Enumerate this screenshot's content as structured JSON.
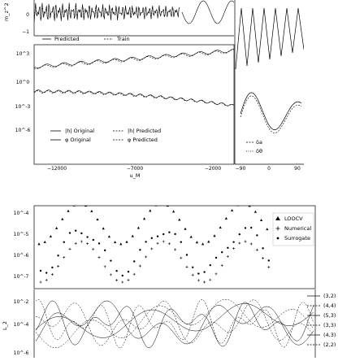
{
  "chart_data": [
    {
      "type": "line",
      "panel": "top-left",
      "ylabel": "m_z^2",
      "yticks": [
        "0",
        "−1"
      ],
      "legend": {
        "placement": "bottom-left",
        "entries": [
          "Predicted",
          "Train"
        ]
      },
      "series": [
        {
          "name": "Predicted",
          "style": "solid"
        },
        {
          "name": "Train",
          "style": "dashed"
        }
      ]
    },
    {
      "type": "line",
      "panel": "middle-left",
      "xlabel": "u_M",
      "yscale": "log",
      "yticks": [
        "10^3",
        "10^0",
        "10^-3",
        "10^-6"
      ],
      "xticks": [
        "−12000",
        "−7000",
        "−2000"
      ],
      "legend": {
        "placement": "bottom-left",
        "entries": [
          "|h| Original",
          "|h| Predicted",
          "φ Original",
          "φ Predicted"
        ]
      },
      "series": [
        {
          "name": "|h| Original",
          "style": "solid"
        },
        {
          "name": "|h| Predicted",
          "style": "dashed"
        },
        {
          "name": "φ Original",
          "style": "solid"
        },
        {
          "name": "φ Predicted",
          "style": "dashed"
        }
      ]
    },
    {
      "type": "line",
      "panel": "middle-right",
      "xticks": [
        "−90",
        "0",
        "90"
      ],
      "legend": {
        "placement": "bottom-left",
        "entries": [
          "δa",
          "δθ"
        ]
      }
    },
    {
      "type": "scatter",
      "panel": "bottom-top",
      "yscale": "log",
      "yticks": [
        "10^-4",
        "10^-5",
        "10^-6",
        "10^-7"
      ],
      "legend": {
        "placement": "top-right",
        "entries": [
          "LOOCV",
          "Numerical",
          "Surrogate"
        ]
      },
      "series": [
        {
          "name": "LOOCV",
          "marker": "triangle"
        },
        {
          "name": "Numerical",
          "marker": "plus"
        },
        {
          "name": "Surrogate",
          "marker": "dot"
        }
      ]
    },
    {
      "type": "line",
      "panel": "bottom",
      "ylabel": "L_2",
      "yscale": "log",
      "yticks": [
        "10^-2",
        "10^-4",
        "10^-6"
      ],
      "legend": {
        "placement": "right",
        "entries": [
          "(3,2)",
          "(4,4)",
          "(5,3)",
          "(3,3)",
          "(4,3)",
          "(2,2)"
        ]
      }
    }
  ]
}
